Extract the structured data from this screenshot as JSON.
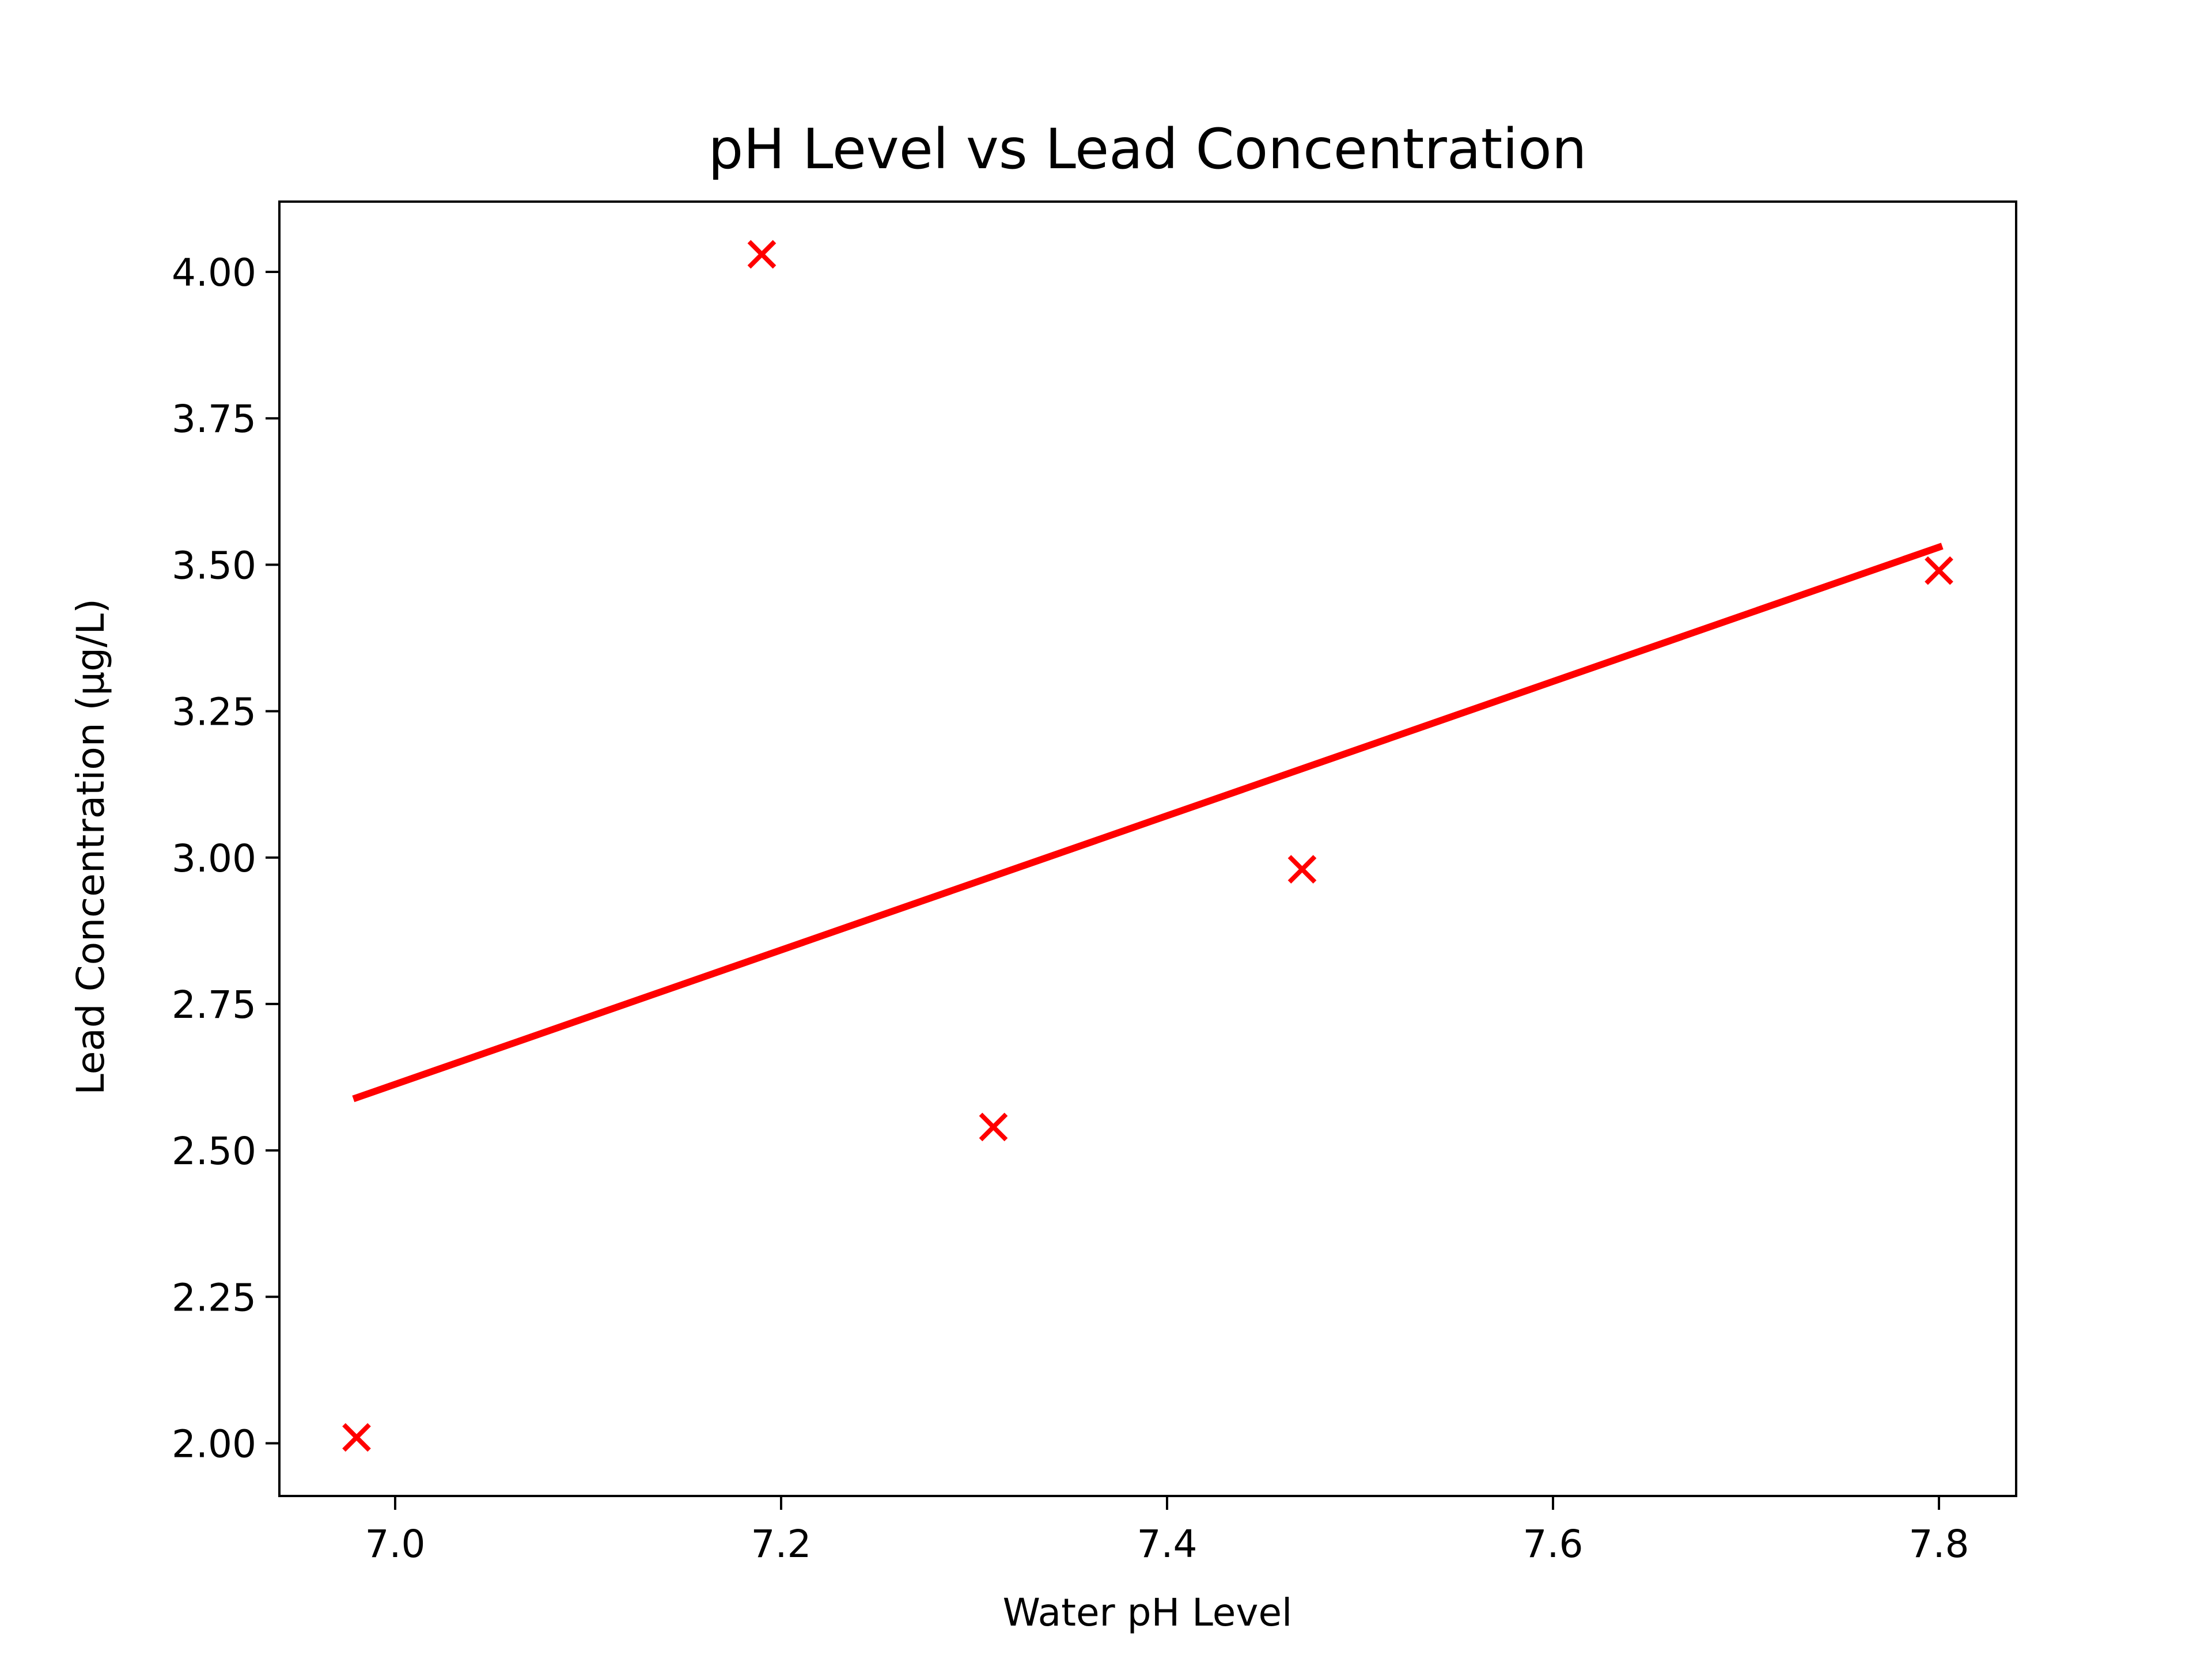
{
  "chart_data": {
    "type": "scatter",
    "title": "pH Level vs Lead Concentration",
    "xlabel": "Water pH Level",
    "ylabel": "Lead Concentration (µg/L)",
    "xlim": [
      6.94,
      7.84
    ],
    "ylim": [
      1.91,
      4.12
    ],
    "xticks": [
      7.0,
      7.2,
      7.4,
      7.6,
      7.8
    ],
    "xtick_labels": [
      "7.0",
      "7.2",
      "7.4",
      "7.6",
      "7.8"
    ],
    "yticks": [
      2.0,
      2.25,
      2.5,
      2.75,
      3.0,
      3.25,
      3.5,
      3.75,
      4.0
    ],
    "ytick_labels": [
      "2.00",
      "2.25",
      "2.50",
      "2.75",
      "3.00",
      "3.25",
      "3.50",
      "3.75",
      "4.00"
    ],
    "grid": false,
    "series": [
      {
        "type": "scatter",
        "marker": "x",
        "color": "#ff0000",
        "points": [
          {
            "x": 6.98,
            "y": 2.01
          },
          {
            "x": 7.19,
            "y": 4.03
          },
          {
            "x": 7.31,
            "y": 2.54
          },
          {
            "x": 7.47,
            "y": 2.98
          },
          {
            "x": 7.8,
            "y": 3.49
          }
        ]
      },
      {
        "type": "line",
        "color": "#ff0000",
        "points": [
          {
            "x": 6.98,
            "y": 2.59
          },
          {
            "x": 7.8,
            "y": 3.53
          }
        ]
      }
    ]
  }
}
